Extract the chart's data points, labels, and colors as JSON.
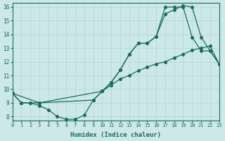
{
  "xlabel": "Humidex (Indice chaleur)",
  "xlim": [
    0,
    23
  ],
  "ylim": [
    7.7,
    16.3
  ],
  "yticks": [
    8,
    9,
    10,
    11,
    12,
    13,
    14,
    15,
    16
  ],
  "xticks": [
    0,
    1,
    2,
    3,
    4,
    5,
    6,
    7,
    8,
    9,
    10,
    11,
    12,
    13,
    14,
    15,
    16,
    17,
    18,
    19,
    20,
    21,
    22,
    23
  ],
  "bg_color": "#cce8e8",
  "line_color": "#1a6b60",
  "grid_color": "#b8d8d8",
  "series1_x": [
    0,
    1,
    2,
    3,
    4,
    5,
    6,
    7,
    8,
    9,
    10,
    11,
    12,
    13,
    14,
    15,
    16,
    17,
    18,
    19,
    20,
    21,
    22,
    23
  ],
  "series1_y": [
    9.7,
    9.0,
    9.0,
    8.8,
    8.5,
    8.0,
    7.8,
    7.8,
    8.1,
    9.2,
    9.85,
    10.5,
    11.4,
    12.55,
    13.35,
    13.35,
    13.85,
    16.0,
    16.0,
    16.0,
    13.8,
    12.8,
    12.8,
    11.85
  ],
  "series2_x": [
    0,
    1,
    2,
    3,
    10,
    11,
    12,
    13,
    14,
    15,
    16,
    17,
    18,
    19,
    20,
    21,
    22,
    23
  ],
  "series2_y": [
    9.7,
    9.0,
    9.0,
    9.0,
    9.85,
    10.5,
    11.4,
    12.55,
    13.35,
    13.35,
    13.85,
    15.5,
    15.8,
    16.1,
    16.0,
    13.8,
    12.8,
    11.85
  ],
  "series3_x": [
    0,
    3,
    9,
    10,
    11,
    12,
    13,
    14,
    15,
    16,
    17,
    18,
    19,
    20,
    21,
    22,
    23
  ],
  "series3_y": [
    9.7,
    9.0,
    9.2,
    9.85,
    10.3,
    10.75,
    11.0,
    11.35,
    11.6,
    11.85,
    12.0,
    12.3,
    12.55,
    12.85,
    13.0,
    13.15,
    11.85
  ]
}
